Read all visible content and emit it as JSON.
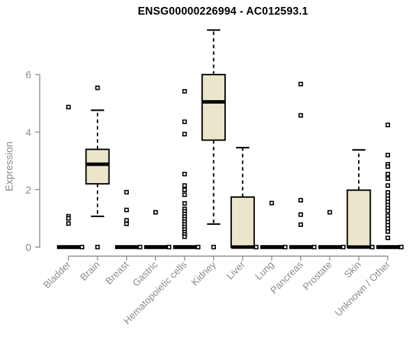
{
  "chart_data": {
    "type": "boxplot",
    "title": "ENSG00000226994 - AC012593.1",
    "ylabel": "Expression",
    "yticks": [
      0,
      2,
      4,
      6
    ],
    "ylim": [
      0,
      7.6
    ],
    "grid": false,
    "legend": "none",
    "colors": {
      "box_fill": "#EBE6CB",
      "box_stroke": "#000000",
      "axis": "#8C8C8C",
      "title": "#000000"
    },
    "categories": [
      "Bladder",
      "Brain",
      "Breast",
      "Gastric",
      "Hematopoietic cells",
      "Kidney",
      "Liver",
      "Lung",
      "Pancreas",
      "Prostate",
      "Skin",
      "Unknown / Other"
    ],
    "boxes": [
      {
        "category": "Bladder",
        "whisker_low": 0,
        "q1": 0,
        "median": 0,
        "q3": 0,
        "whisker_high": 0,
        "outliers": [
          4.87,
          1.07,
          1.0,
          0.82
        ]
      },
      {
        "category": "Brain",
        "whisker_low": 1.07,
        "q1": 2.2,
        "median": 2.88,
        "q3": 3.4,
        "whisker_high": 4.76,
        "outliers": [
          5.54,
          0
        ]
      },
      {
        "category": "Breast",
        "whisker_low": 0,
        "q1": 0,
        "median": 0,
        "q3": 0,
        "whisker_high": 0,
        "outliers": [
          1.91,
          1.29,
          0.93,
          0.81
        ]
      },
      {
        "category": "Gastric",
        "whisker_low": 0,
        "q1": 0,
        "median": 0,
        "q3": 0,
        "whisker_high": 0,
        "outliers": [
          1.21
        ]
      },
      {
        "category": "Hematopoietic cells",
        "whisker_low": 0,
        "q1": 0,
        "median": 0,
        "q3": 0,
        "whisker_high": 0,
        "outliers": [
          5.42,
          4.36,
          3.93,
          2.54,
          2.14,
          1.99,
          1.82,
          1.52,
          1.33,
          1.24,
          1.15,
          1.06,
          0.97,
          0.88,
          0.79,
          0.7,
          0.61,
          0.52,
          0.44,
          0.36
        ]
      },
      {
        "category": "Kidney",
        "whisker_low": 0.8,
        "q1": 3.72,
        "median": 5.05,
        "q3": 6.0,
        "whisker_high": 7.55,
        "outliers": [
          0
        ]
      },
      {
        "category": "Liver",
        "whisker_low": 0,
        "q1": 0,
        "median": 0,
        "q3": 1.74,
        "whisker_high": 3.46,
        "outliers": []
      },
      {
        "category": "Lung",
        "whisker_low": 0,
        "q1": 0,
        "median": 0,
        "q3": 0,
        "whisker_high": 0,
        "outliers": [
          1.53
        ]
      },
      {
        "category": "Pancreas",
        "whisker_low": 0,
        "q1": 0,
        "median": 0,
        "q3": 0,
        "whisker_high": 0,
        "outliers": [
          5.67,
          4.58,
          1.63,
          1.13,
          0.78
        ]
      },
      {
        "category": "Prostate",
        "whisker_low": 0,
        "q1": 0,
        "median": 0,
        "q3": 0,
        "whisker_high": 0,
        "outliers": [
          1.21
        ]
      },
      {
        "category": "Skin",
        "whisker_low": 0,
        "q1": 0,
        "median": 0,
        "q3": 1.98,
        "whisker_high": 3.38,
        "outliers": []
      },
      {
        "category": "Unknown / Other",
        "whisker_low": 0,
        "q1": 0,
        "median": 0,
        "q3": 0,
        "whisker_high": 0,
        "outliers": [
          4.25,
          3.2,
          2.88,
          2.8,
          2.54,
          2.38,
          2.14,
          1.9,
          1.79,
          1.68,
          1.57,
          1.46,
          1.36,
          1.26,
          1.09,
          0.98,
          0.87,
          0.76,
          0.65,
          0.54,
          0.32
        ]
      }
    ]
  }
}
